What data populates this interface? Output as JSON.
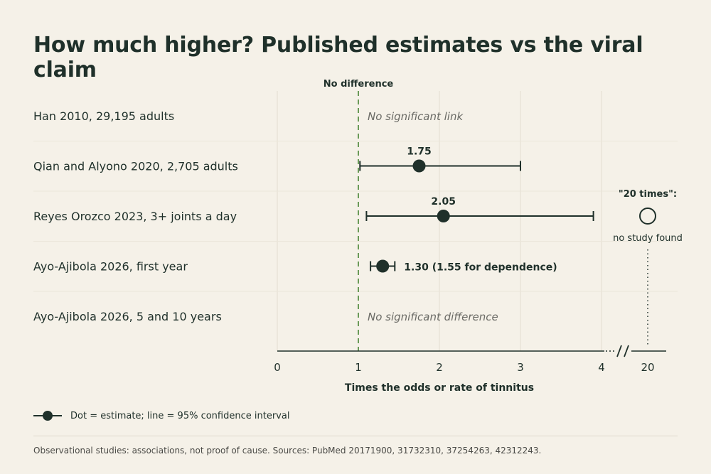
{
  "title": "How much higher? Published estimates vs the viral claim",
  "reference_label": "No difference",
  "chart_data": {
    "type": "forest",
    "x_label": "Times the odds or rate of tinnitus",
    "x_ticks": [
      "0",
      "1",
      "2",
      "3",
      "4"
    ],
    "x_break_tick": "20",
    "x_range": [
      0,
      4
    ],
    "reference_value": 1,
    "rows": [
      {
        "label": "Han 2010, 29,195 adults",
        "estimate": null,
        "low": null,
        "high": null,
        "note": "No significant link"
      },
      {
        "label": "Qian and Alyono 2020, 2,705 adults",
        "estimate": 1.75,
        "low": 1.02,
        "high": 3.0,
        "value_label": "1.75"
      },
      {
        "label": "Reyes Orozco 2023, 3+ joints a day",
        "estimate": 2.05,
        "low": 1.1,
        "high": 3.9,
        "value_label": "2.05"
      },
      {
        "label": "Ayo-Ajibola 2026, first year",
        "estimate": 1.3,
        "low": 1.15,
        "high": 1.45,
        "value_label": "1.30 (1.55 for dependence)"
      },
      {
        "label": "Ayo-Ajibola 2026, 5 and 10 years",
        "estimate": null,
        "low": null,
        "high": null,
        "note": "No significant difference"
      }
    ],
    "claim": {
      "value": 20,
      "title": "\"20 times\":",
      "subtitle": "no study found"
    }
  },
  "legend": {
    "text": "Dot = estimate; line = 95% confidence interval"
  },
  "footnote": "Observational studies: associations, not proof of cause. Sources: PubMed 20171900, 31732310, 37254263, 42312243.",
  "colors": {
    "ink": "#1f302a",
    "reference": "#6a9a58",
    "grid": "#e2ddcf",
    "note": "#6b6b66"
  }
}
